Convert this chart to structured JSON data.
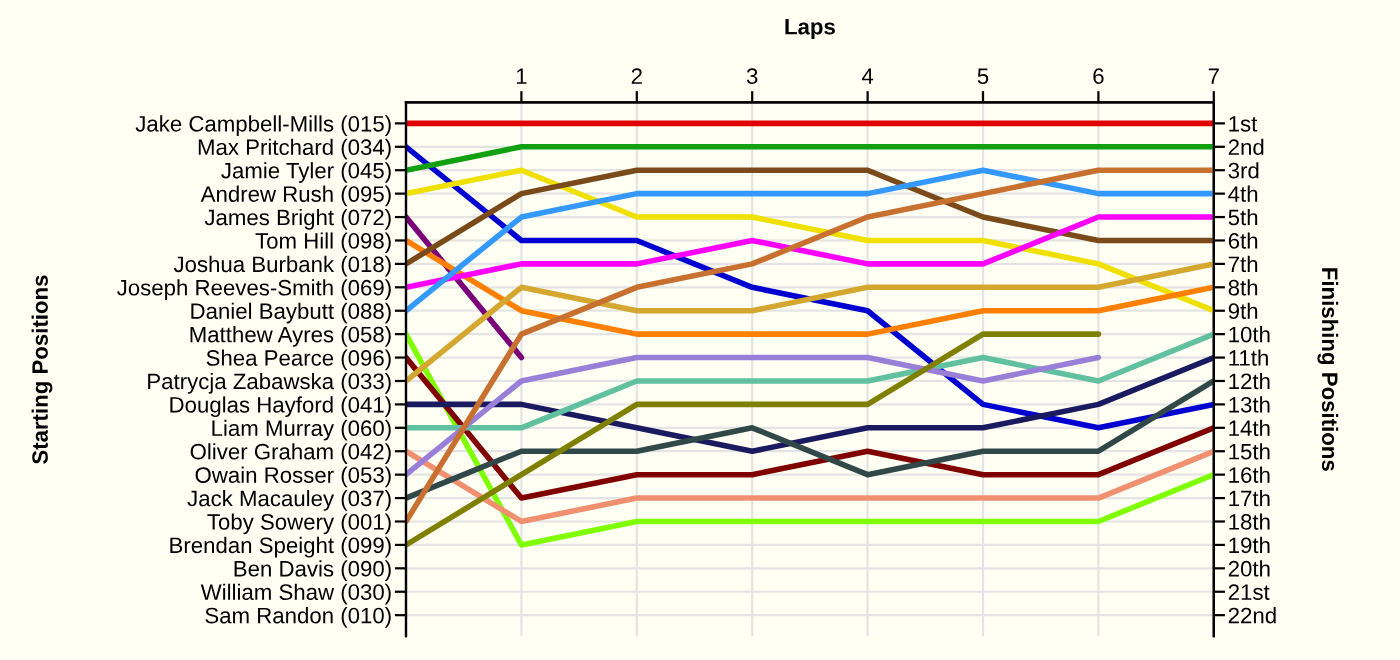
{
  "chart_data": {
    "type": "line",
    "xlabel": "Laps",
    "annotations": [
      "Starting Positions"
    ],
    "y2label": "Finishing Positions",
    "x": [
      0,
      1,
      2,
      3,
      4,
      5,
      6,
      7
    ],
    "xlim": [
      0,
      7
    ],
    "xticks": [
      1,
      2,
      3,
      4,
      5,
      6,
      7
    ],
    "y_categories": [
      "Jake Campbell-Mills (015)",
      "Max Pritchard (034)",
      "Jamie Tyler (045)",
      "Andrew Rush (095)",
      "James Bright (072)",
      "Tom Hill (098)",
      "Joshua Burbank (018)",
      "Joseph Reeves-Smith (069)",
      "Daniel Baybutt (088)",
      "Matthew Ayres (058)",
      "Shea Pearce (096)",
      "Patrycja Zabawska (033)",
      "Douglas Hayford (041)",
      "Liam Murray (060)",
      "Oliver Graham (042)",
      "Owain Rosser (053)",
      "Jack Macauley (037)",
      "Toby Sowery (001)",
      "Brendan Speight (099)",
      "Ben Davis (090)",
      "William Shaw (030)",
      "Sam Randon (010)"
    ],
    "y2lim": [
      22.9,
      0.1
    ],
    "y2ticks": [
      {
        "value": 1,
        "label": "1st"
      },
      {
        "value": 2,
        "label": "2nd"
      },
      {
        "value": 3,
        "label": "3rd"
      },
      {
        "value": 4,
        "label": "4th"
      },
      {
        "value": 5,
        "label": "5th"
      },
      {
        "value": 6,
        "label": "6th"
      },
      {
        "value": 7,
        "label": "7th"
      },
      {
        "value": 8,
        "label": "8th"
      },
      {
        "value": 9,
        "label": "9th"
      },
      {
        "value": 10,
        "label": "10th"
      },
      {
        "value": 11,
        "label": "11th"
      },
      {
        "value": 12,
        "label": "12th"
      },
      {
        "value": 13,
        "label": "13th"
      },
      {
        "value": 14,
        "label": "14th"
      },
      {
        "value": 15,
        "label": "15th"
      },
      {
        "value": 16,
        "label": "16th"
      },
      {
        "value": 17,
        "label": "17th"
      },
      {
        "value": 18,
        "label": "18th"
      },
      {
        "value": 19,
        "label": "19th"
      },
      {
        "value": 20,
        "label": "20th"
      },
      {
        "value": 21,
        "label": "21st"
      },
      {
        "value": 22,
        "label": "22nd"
      }
    ],
    "grid": true,
    "series": [
      {
        "axis": "y2",
        "color": "#e00000",
        "values": [
          1,
          1,
          1,
          1,
          1,
          1,
          1,
          1
        ]
      },
      {
        "axis": "y2",
        "color": "#0000d0",
        "values": [
          2,
          6,
          6,
          8,
          9,
          13,
          14,
          13
        ]
      },
      {
        "axis": "y2",
        "color": "#10a010",
        "values": [
          3,
          2,
          2,
          2,
          2,
          2,
          2,
          2
        ]
      },
      {
        "axis": "y2",
        "color": "#f0e000",
        "values": [
          4,
          3,
          5,
          5,
          6,
          6,
          7,
          9
        ]
      },
      {
        "axis": "y2",
        "color": "#7a007a",
        "values": [
          5,
          11,
          null,
          null,
          null,
          null,
          null,
          null
        ]
      },
      {
        "axis": "y2",
        "color": "#ff7f00",
        "values": [
          6,
          9,
          10,
          10,
          10,
          9,
          9,
          8
        ]
      },
      {
        "axis": "y2",
        "color": "#7a4a1a",
        "values": [
          7,
          4,
          3,
          3,
          3,
          5,
          6,
          6
        ]
      },
      {
        "axis": "y2",
        "color": "#ff00ff",
        "values": [
          8,
          7,
          7,
          6,
          7,
          7,
          5,
          5
        ]
      },
      {
        "axis": "y2",
        "color": "#3399ff",
        "values": [
          9,
          5,
          4,
          4,
          4,
          3,
          4,
          4
        ]
      },
      {
        "axis": "y2",
        "color": "#80ff00",
        "values": [
          10,
          19,
          18,
          18,
          18,
          18,
          18,
          16
        ]
      },
      {
        "axis": "y2",
        "color": "#800000",
        "values": [
          11,
          17,
          16,
          16,
          15,
          16,
          16,
          14
        ]
      },
      {
        "axis": "y2",
        "color": "#d4a830",
        "values": [
          12,
          8,
          9,
          9,
          8,
          8,
          8,
          7
        ]
      },
      {
        "axis": "y2",
        "color": "#1a1a60",
        "values": [
          13,
          13,
          14,
          15,
          14,
          14,
          13,
          11
        ]
      },
      {
        "axis": "y2",
        "color": "#60c0a0",
        "values": [
          14,
          14,
          12,
          12,
          12,
          11,
          12,
          10
        ]
      },
      {
        "axis": "y2",
        "color": "#f09070",
        "values": [
          15,
          18,
          17,
          17,
          17,
          17,
          17,
          15
        ]
      },
      {
        "axis": "y2",
        "color": "#9a7fd8",
        "values": [
          16,
          12,
          11,
          11,
          11,
          12,
          11,
          null
        ]
      },
      {
        "axis": "y2",
        "color": "#304848",
        "values": [
          17,
          15,
          15,
          14,
          16,
          15,
          15,
          12
        ]
      },
      {
        "axis": "y2",
        "color": "#c87030",
        "values": [
          18,
          10,
          8,
          7,
          5,
          4,
          3,
          3
        ]
      },
      {
        "axis": "y2",
        "color": "#808000",
        "values": [
          19,
          16,
          13,
          13,
          13,
          10,
          10,
          null
        ]
      }
    ]
  }
}
